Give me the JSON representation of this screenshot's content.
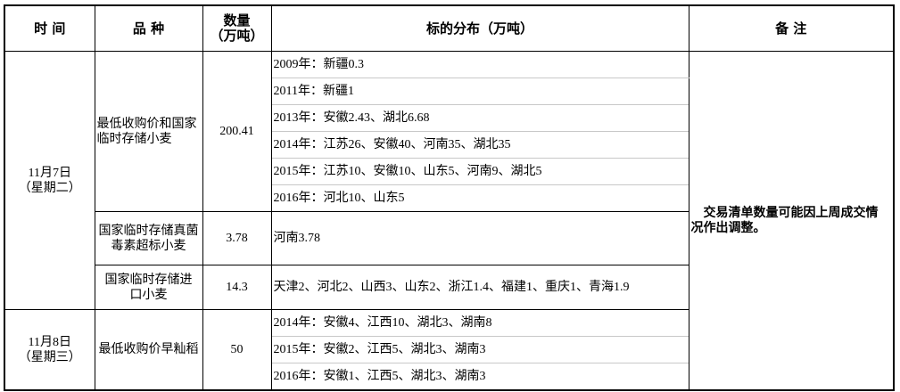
{
  "header": {
    "time": "时 间",
    "variety": "品 种",
    "quantity_line1": "数量",
    "quantity_line2": "（万吨）",
    "distribution": "标的分布（万吨）",
    "remarks": "备 注"
  },
  "groups": [
    {
      "date": "11月7日",
      "weekday": "（星期二）",
      "items": [
        {
          "variety": "最低收购价和国家临时存储小麦",
          "quantity": "200.41",
          "distribution": [
            "2009年：新疆0.3",
            "2011年：新疆1",
            "2013年：安徽2.43、湖北6.68",
            "2014年：江苏26、安徽40、河南35、湖北35",
            "2015年：江苏10、安徽10、山东5、河南9、湖北5",
            "2016年：河北10、山东5"
          ]
        },
        {
          "variety": "国家临时存储真菌毒素超标小麦",
          "quantity": "3.78",
          "distribution": [
            "河南3.78"
          ]
        },
        {
          "variety": "国家临时存储进口小麦",
          "quantity": "14.3",
          "distribution": [
            "天津2、河北2、山西3、山东2、浙江1.4、福建1、重庆1、青海1.9"
          ]
        }
      ]
    },
    {
      "date": "11月8日",
      "weekday": "（星期三）",
      "items": [
        {
          "variety": "最低收购价早籼稻",
          "quantity": "50",
          "distribution": [
            "2014年：安徽4、江西10、湖北3、湖南8",
            "2015年：安徽2、江西5、湖北3、湖南3",
            "2016年：安徽1、江西5、湖北3、湖南3"
          ]
        }
      ]
    }
  ],
  "remarks": "交易清单数量可能因上周成交情况作出调整。"
}
